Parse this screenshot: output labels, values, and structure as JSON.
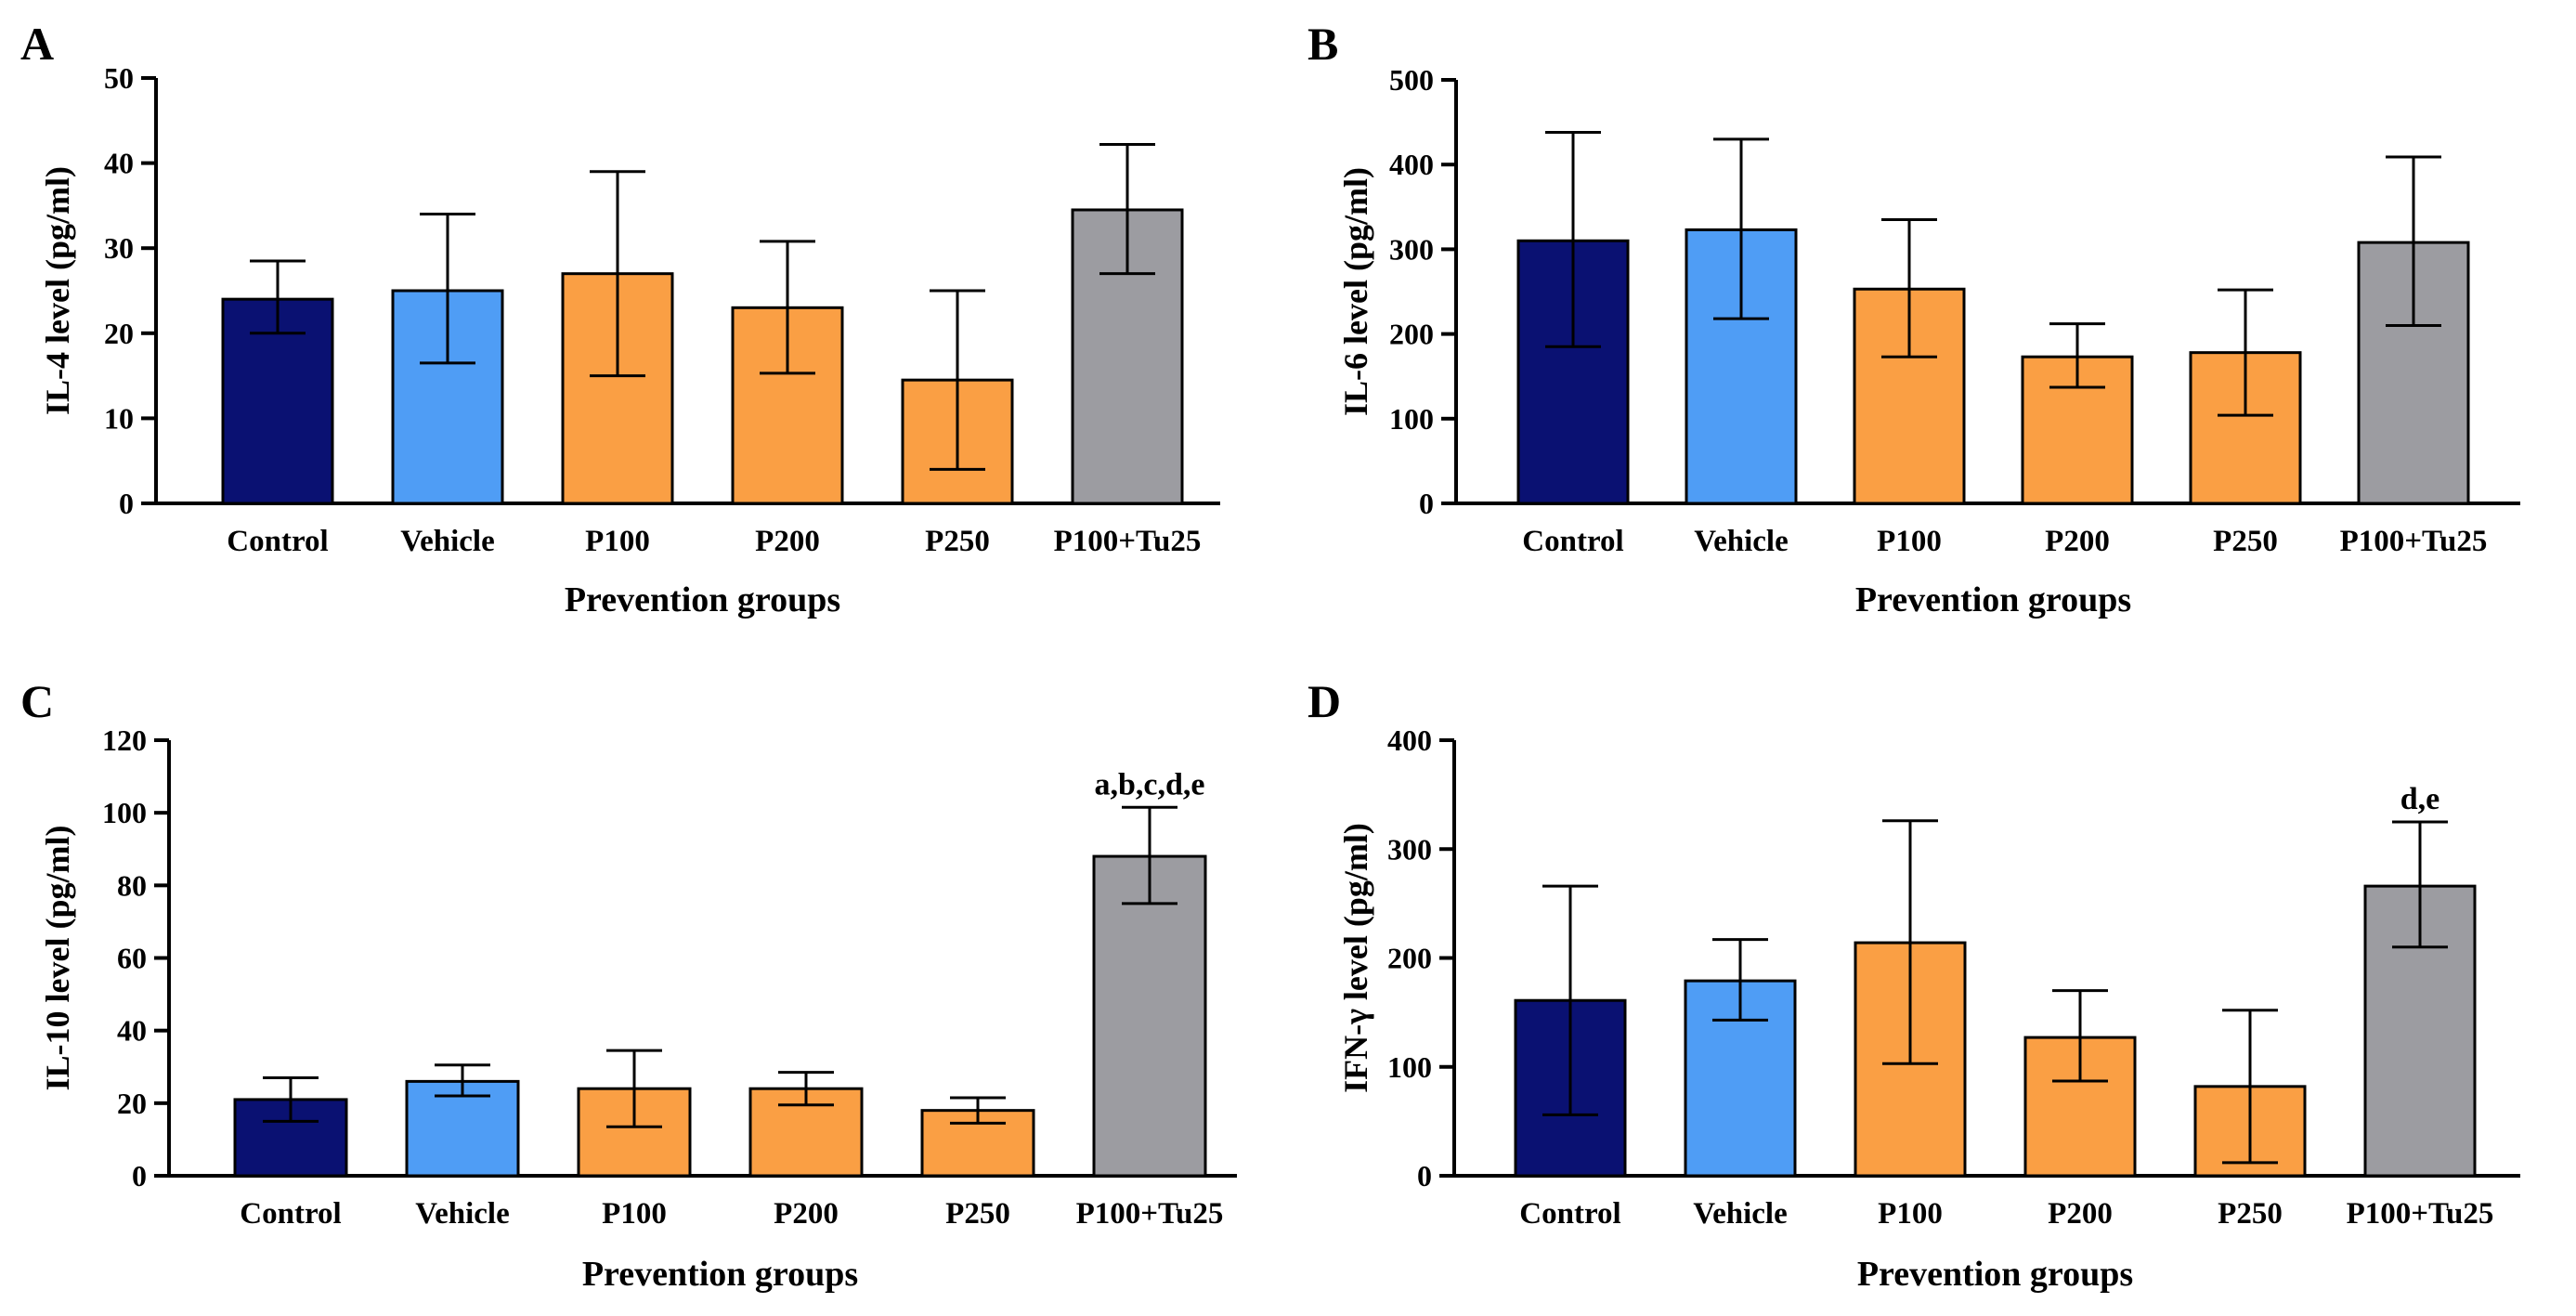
{
  "colors": {
    "control": "#0a1172",
    "vehicle": "#4f9df5",
    "treatment": "#fa9f44",
    "combo": "#9c9ca1"
  },
  "chart_data": [
    {
      "type": "bar",
      "panel": "A",
      "categories": [
        "Control",
        "Vehicle",
        "P100",
        "P200",
        "P250",
        "P100+Tu25"
      ],
      "values": [
        24,
        25,
        27,
        23,
        14.5,
        34.5
      ],
      "err_upper": [
        28.5,
        34,
        39,
        30.8,
        25,
        42.2
      ],
      "err_lower": [
        20,
        16.5,
        15,
        15.3,
        4,
        27
      ],
      "annotation": "",
      "xlabel": "Prevention groups",
      "ylabel": "IL-4 level (pg/ml)",
      "ylim": [
        0,
        50
      ],
      "yticks": [
        0,
        10,
        20,
        30,
        40,
        50
      ]
    },
    {
      "type": "bar",
      "panel": "B",
      "categories": [
        "Control",
        "Vehicle",
        "P100",
        "P200",
        "P250",
        "P100+Tu25"
      ],
      "values": [
        310,
        323,
        253,
        173,
        178,
        308
      ],
      "err_upper": [
        438,
        430,
        335,
        212,
        252,
        409
      ],
      "err_lower": [
        185,
        218,
        173,
        137,
        104,
        210
      ],
      "annotation": "",
      "xlabel": "Prevention groups",
      "ylabel": "IL-6 level (pg/ml)",
      "ylim": [
        0,
        500
      ],
      "yticks": [
        0,
        100,
        200,
        300,
        400,
        500
      ]
    },
    {
      "type": "bar",
      "panel": "C",
      "categories": [
        "Control",
        "Vehicle",
        "P100",
        "P200",
        "P250",
        "P100+Tu25"
      ],
      "values": [
        21,
        26,
        24,
        24,
        18,
        88
      ],
      "err_upper": [
        27,
        30.5,
        34.5,
        28.5,
        21.5,
        101.5
      ],
      "err_lower": [
        15,
        22,
        13.5,
        19.5,
        14.5,
        75
      ],
      "annotation": "a,b,c,d,e",
      "annotation_index": 5,
      "xlabel": "Prevention groups",
      "ylabel": "IL-10 level (pg/ml)",
      "ylim": [
        0,
        120
      ],
      "yticks": [
        0,
        20,
        40,
        60,
        80,
        100,
        120
      ]
    },
    {
      "type": "bar",
      "panel": "D",
      "categories": [
        "Control",
        "Vehicle",
        "P100",
        "P200",
        "P250",
        "P100+Tu25"
      ],
      "values": [
        161,
        179,
        214,
        127,
        82,
        266
      ],
      "err_upper": [
        266,
        217,
        326,
        170,
        152,
        325
      ],
      "err_lower": [
        56,
        143,
        103,
        87,
        12,
        210
      ],
      "annotation": "d,e",
      "annotation_index": 5,
      "xlabel": "Prevention groups",
      "ylabel": "IFN-γ level (pg/ml)",
      "ylim": [
        0,
        400
      ],
      "yticks": [
        0,
        100,
        200,
        300,
        400
      ]
    }
  ]
}
